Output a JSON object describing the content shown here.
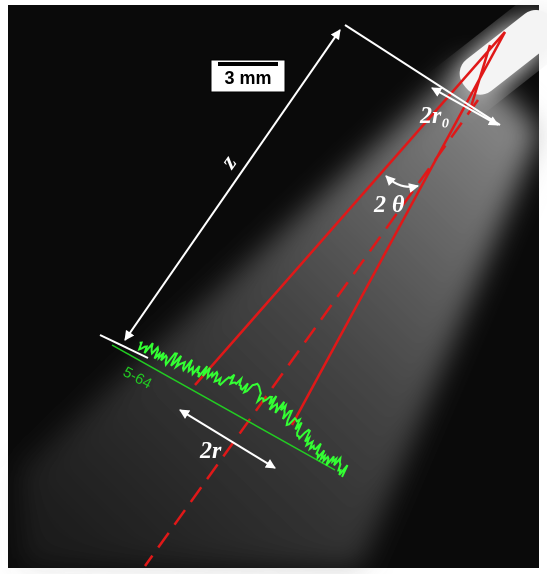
{
  "scale_bar": {
    "label": "3 mm"
  },
  "annotations": {
    "axial_distance": "z",
    "nozzle_diameter": "2r₀",
    "cone_angle": "2 θ",
    "spray_width": "2r",
    "profile_id": "5-64"
  }
}
